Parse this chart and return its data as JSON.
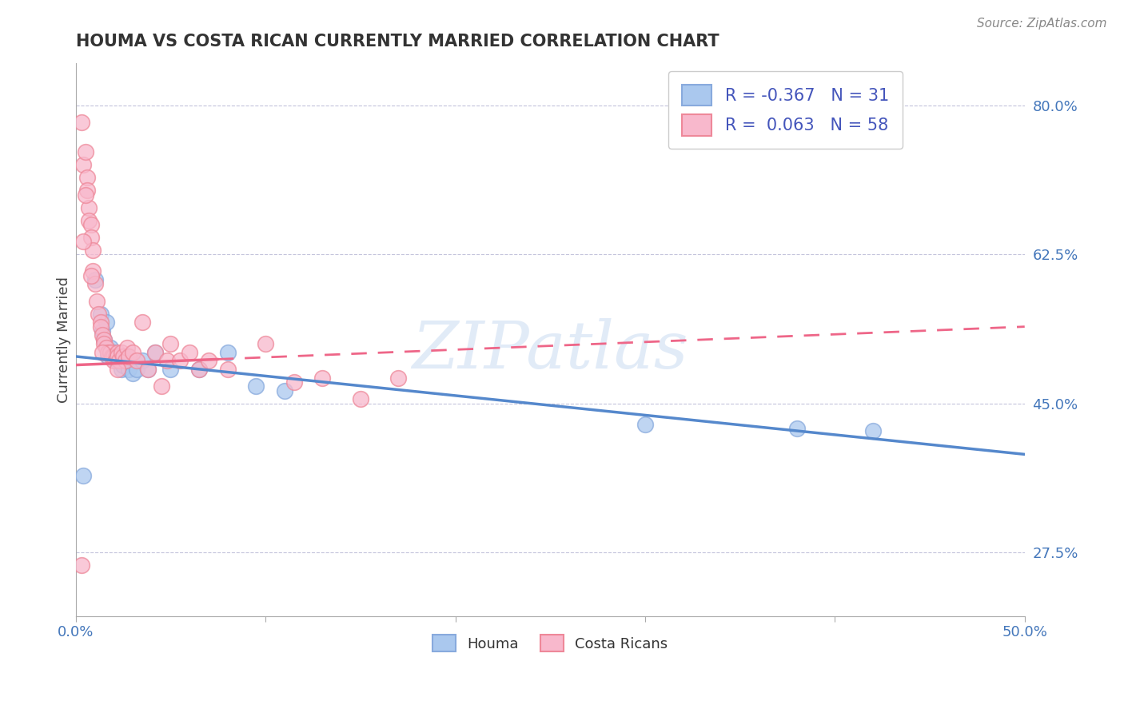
{
  "title": "HOUMA VS COSTA RICAN CURRENTLY MARRIED CORRELATION CHART",
  "source_text": "Source: ZipAtlas.com",
  "ylabel": "Currently Married",
  "xlim": [
    0.0,
    0.5
  ],
  "ylim": [
    0.2,
    0.85
  ],
  "background_color": "#ffffff",
  "houma_color": "#aac8ee",
  "costa_rican_color": "#f8b8cc",
  "houma_edge_color": "#88aadd",
  "costa_rican_edge_color": "#ee8899",
  "houma_line_color": "#5588cc",
  "costa_rican_line_color": "#ee6688",
  "legend_R_color": "#4455bb",
  "legend_N_color": "#4477cc",
  "R_houma": "-0.367",
  "N_houma": "31",
  "R_costa": "0.063",
  "N_costa": "58",
  "watermark": "ZIPatlas",
  "ytick_positions": [
    0.275,
    0.45,
    0.625,
    0.8
  ],
  "ytick_labels": [
    "27.5%",
    "45.0%",
    "62.5%",
    "80.0%"
  ],
  "houma_points": [
    [
      0.004,
      0.365
    ],
    [
      0.01,
      0.595
    ],
    [
      0.013,
      0.555
    ],
    [
      0.014,
      0.535
    ],
    [
      0.015,
      0.525
    ],
    [
      0.016,
      0.545
    ],
    [
      0.017,
      0.505
    ],
    [
      0.018,
      0.515
    ],
    [
      0.019,
      0.51
    ],
    [
      0.02,
      0.51
    ],
    [
      0.021,
      0.5
    ],
    [
      0.022,
      0.505
    ],
    [
      0.023,
      0.5
    ],
    [
      0.024,
      0.49
    ],
    [
      0.025,
      0.495
    ],
    [
      0.026,
      0.505
    ],
    [
      0.027,
      0.5
    ],
    [
      0.028,
      0.49
    ],
    [
      0.03,
      0.485
    ],
    [
      0.032,
      0.49
    ],
    [
      0.035,
      0.5
    ],
    [
      0.038,
      0.49
    ],
    [
      0.042,
      0.51
    ],
    [
      0.05,
      0.49
    ],
    [
      0.065,
      0.49
    ],
    [
      0.08,
      0.51
    ],
    [
      0.095,
      0.47
    ],
    [
      0.11,
      0.465
    ],
    [
      0.3,
      0.425
    ],
    [
      0.38,
      0.42
    ],
    [
      0.42,
      0.418
    ]
  ],
  "costa_rican_points": [
    [
      0.003,
      0.78
    ],
    [
      0.004,
      0.73
    ],
    [
      0.005,
      0.745
    ],
    [
      0.006,
      0.715
    ],
    [
      0.006,
      0.7
    ],
    [
      0.007,
      0.68
    ],
    [
      0.007,
      0.665
    ],
    [
      0.008,
      0.66
    ],
    [
      0.008,
      0.645
    ],
    [
      0.009,
      0.63
    ],
    [
      0.009,
      0.605
    ],
    [
      0.01,
      0.59
    ],
    [
      0.011,
      0.57
    ],
    [
      0.012,
      0.555
    ],
    [
      0.013,
      0.545
    ],
    [
      0.013,
      0.54
    ],
    [
      0.014,
      0.53
    ],
    [
      0.015,
      0.525
    ],
    [
      0.015,
      0.52
    ],
    [
      0.016,
      0.515
    ],
    [
      0.017,
      0.51
    ],
    [
      0.018,
      0.51
    ],
    [
      0.019,
      0.505
    ],
    [
      0.02,
      0.5
    ],
    [
      0.02,
      0.505
    ],
    [
      0.021,
      0.505
    ],
    [
      0.022,
      0.51
    ],
    [
      0.022,
      0.505
    ],
    [
      0.023,
      0.5
    ],
    [
      0.024,
      0.51
    ],
    [
      0.025,
      0.505
    ],
    [
      0.026,
      0.5
    ],
    [
      0.027,
      0.515
    ],
    [
      0.028,
      0.505
    ],
    [
      0.03,
      0.51
    ],
    [
      0.032,
      0.5
    ],
    [
      0.035,
      0.545
    ],
    [
      0.038,
      0.49
    ],
    [
      0.042,
      0.51
    ],
    [
      0.045,
      0.47
    ],
    [
      0.048,
      0.5
    ],
    [
      0.05,
      0.52
    ],
    [
      0.055,
      0.5
    ],
    [
      0.06,
      0.51
    ],
    [
      0.065,
      0.49
    ],
    [
      0.07,
      0.5
    ],
    [
      0.08,
      0.49
    ],
    [
      0.1,
      0.52
    ],
    [
      0.115,
      0.475
    ],
    [
      0.13,
      0.48
    ],
    [
      0.15,
      0.455
    ],
    [
      0.17,
      0.48
    ],
    [
      0.014,
      0.51
    ],
    [
      0.003,
      0.26
    ],
    [
      0.004,
      0.64
    ],
    [
      0.005,
      0.695
    ],
    [
      0.008,
      0.6
    ],
    [
      0.022,
      0.49
    ]
  ],
  "houma_trend_x": [
    0.0,
    0.5
  ],
  "houma_trend_y": [
    0.505,
    0.39
  ],
  "costa_rican_trend_x": [
    0.0,
    0.5
  ],
  "costa_rican_trend_y": [
    0.495,
    0.54
  ],
  "houma_trend_solid_end_x": 0.5,
  "costa_rican_trend_solid_end_x": 0.075,
  "costa_rican_trend_dashed_start_x": 0.075
}
